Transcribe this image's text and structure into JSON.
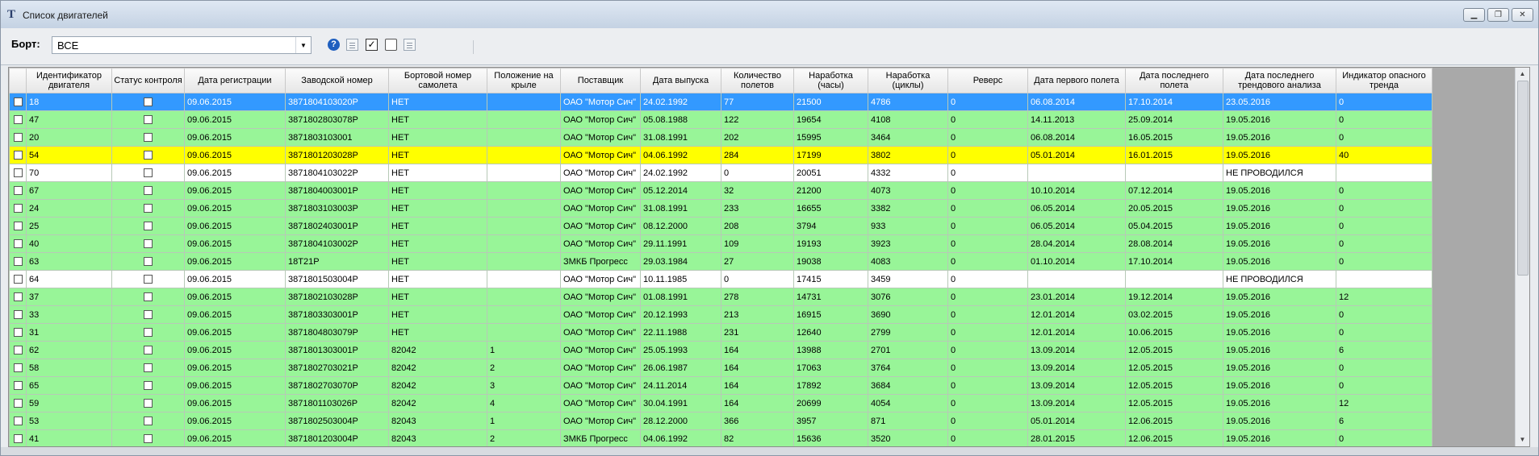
{
  "window": {
    "title": "Список двигателей",
    "buttons": [
      "minimize-icon",
      "restore-icon",
      "close-icon"
    ]
  },
  "toolbar": {
    "bort_label": "Борт:",
    "bort_value": "ВСЕ"
  },
  "table": {
    "columns": [
      "Идентификатор двигателя",
      "Статус контроля",
      "Дата регистрации",
      "Заводской номер",
      "Бортовой номер самолета",
      "Положение на крыле",
      "Поставщик",
      "Дата выпуска",
      "Количество полетов",
      "Наработка (часы)",
      "Наработка (циклы)",
      "Реверс",
      "Дата первого полета",
      "Дата последнего полета",
      "Дата последнего трендового анализа",
      "Индикатор опасного тренда"
    ],
    "rows": [
      {
        "style": "selected",
        "cells": [
          "18",
          "",
          "09.06.2015",
          "3871804103020P",
          "НЕТ",
          "",
          "ОАО \"Мотор Сич\"",
          "24.02.1992",
          "77",
          "21500",
          "4786",
          "0",
          "06.08.2014",
          "17.10.2014",
          "23.05.2016",
          "0"
        ]
      },
      {
        "style": "green",
        "cells": [
          "47",
          "",
          "09.06.2015",
          "3871802803078P",
          "НЕТ",
          "",
          "ОАО \"Мотор Сич\"",
          "05.08.1988",
          "122",
          "19654",
          "4108",
          "0",
          "14.11.2013",
          "25.09.2014",
          "19.05.2016",
          "0"
        ]
      },
      {
        "style": "green",
        "cells": [
          "20",
          "",
          "09.06.2015",
          "3871803103001",
          "НЕТ",
          "",
          "ОАО \"Мотор Сич\"",
          "31.08.1991",
          "202",
          "15995",
          "3464",
          "0",
          "06.08.2014",
          "16.05.2015",
          "19.05.2016",
          "0"
        ]
      },
      {
        "style": "yellow",
        "cells": [
          "54",
          "",
          "09.06.2015",
          "3871801203028P",
          "НЕТ",
          "",
          "ОАО \"Мотор Сич\"",
          "04.06.1992",
          "284",
          "17199",
          "3802",
          "0",
          "05.01.2014",
          "16.01.2015",
          "19.05.2016",
          "40"
        ]
      },
      {
        "style": "white",
        "cells": [
          "70",
          "",
          "09.06.2015",
          "3871804103022P",
          "НЕТ",
          "",
          "ОАО \"Мотор Сич\"",
          "24.02.1992",
          "0",
          "20051",
          "4332",
          "0",
          "",
          "",
          "НЕ ПРОВОДИЛСЯ",
          ""
        ]
      },
      {
        "style": "green",
        "cells": [
          "67",
          "",
          "09.06.2015",
          "3871804003001P",
          "НЕТ",
          "",
          "ОАО \"Мотор Сич\"",
          "05.12.2014",
          "32",
          "21200",
          "4073",
          "0",
          "10.10.2014",
          "07.12.2014",
          "19.05.2016",
          "0"
        ]
      },
      {
        "style": "green",
        "cells": [
          "24",
          "",
          "09.06.2015",
          "3871803103003P",
          "НЕТ",
          "",
          "ОАО \"Мотор Сич\"",
          "31.08.1991",
          "233",
          "16655",
          "3382",
          "0",
          "06.05.2014",
          "20.05.2015",
          "19.05.2016",
          "0"
        ]
      },
      {
        "style": "green",
        "cells": [
          "25",
          "",
          "09.06.2015",
          "3871802403001P",
          "НЕТ",
          "",
          "ОАО \"Мотор Сич\"",
          "08.12.2000",
          "208",
          "3794",
          "933",
          "0",
          "06.05.2014",
          "05.04.2015",
          "19.05.2016",
          "0"
        ]
      },
      {
        "style": "green",
        "cells": [
          "40",
          "",
          "09.06.2015",
          "3871804103002P",
          "НЕТ",
          "",
          "ОАО \"Мотор Сич\"",
          "29.11.1991",
          "109",
          "19193",
          "3923",
          "0",
          "28.04.2014",
          "28.08.2014",
          "19.05.2016",
          "0"
        ]
      },
      {
        "style": "green",
        "cells": [
          "63",
          "",
          "09.06.2015",
          "18Т21Р",
          "НЕТ",
          "",
          "ЗМКБ Прогресс",
          "29.03.1984",
          "27",
          "19038",
          "4083",
          "0",
          "01.10.2014",
          "17.10.2014",
          "19.05.2016",
          "0"
        ]
      },
      {
        "style": "white",
        "cells": [
          "64",
          "",
          "09.06.2015",
          "3871801503004P",
          "НЕТ",
          "",
          "ОАО \"Мотор Сич\"",
          "10.11.1985",
          "0",
          "17415",
          "3459",
          "0",
          "",
          "",
          "НЕ ПРОВОДИЛСЯ",
          ""
        ]
      },
      {
        "style": "green",
        "cells": [
          "37",
          "",
          "09.06.2015",
          "3871802103028P",
          "НЕТ",
          "",
          "ОАО \"Мотор Сич\"",
          "01.08.1991",
          "278",
          "14731",
          "3076",
          "0",
          "23.01.2014",
          "19.12.2014",
          "19.05.2016",
          "12"
        ]
      },
      {
        "style": "green",
        "cells": [
          "33",
          "",
          "09.06.2015",
          "3871803303001P",
          "НЕТ",
          "",
          "ОАО \"Мотор Сич\"",
          "20.12.1993",
          "213",
          "16915",
          "3690",
          "0",
          "12.01.2014",
          "03.02.2015",
          "19.05.2016",
          "0"
        ]
      },
      {
        "style": "green",
        "cells": [
          "31",
          "",
          "09.06.2015",
          "3871804803079P",
          "НЕТ",
          "",
          "ОАО \"Мотор Сич\"",
          "22.11.1988",
          "231",
          "12640",
          "2799",
          "0",
          "12.01.2014",
          "10.06.2015",
          "19.05.2016",
          "0"
        ]
      },
      {
        "style": "green",
        "cells": [
          "62",
          "",
          "09.06.2015",
          "3871801303001P",
          "82042",
          "1",
          "ОАО \"Мотор Сич\"",
          "25.05.1993",
          "164",
          "13988",
          "2701",
          "0",
          "13.09.2014",
          "12.05.2015",
          "19.05.2016",
          "6"
        ]
      },
      {
        "style": "green",
        "cells": [
          "58",
          "",
          "09.06.2015",
          "3871802703021P",
          "82042",
          "2",
          "ОАО \"Мотор Сич\"",
          "26.06.1987",
          "164",
          "17063",
          "3764",
          "0",
          "13.09.2014",
          "12.05.2015",
          "19.05.2016",
          "0"
        ]
      },
      {
        "style": "green",
        "cells": [
          "65",
          "",
          "09.06.2015",
          "3871802703070P",
          "82042",
          "3",
          "ОАО \"Мотор Сич\"",
          "24.11.2014",
          "164",
          "17892",
          "3684",
          "0",
          "13.09.2014",
          "12.05.2015",
          "19.05.2016",
          "0"
        ]
      },
      {
        "style": "green",
        "cells": [
          "59",
          "",
          "09.06.2015",
          "3871801103026P",
          "82042",
          "4",
          "ОАО \"Мотор Сич\"",
          "30.04.1991",
          "164",
          "20699",
          "4054",
          "0",
          "13.09.2014",
          "12.05.2015",
          "19.05.2016",
          "12"
        ]
      },
      {
        "style": "green",
        "cells": [
          "53",
          "",
          "09.06.2015",
          "3871802503004P",
          "82043",
          "1",
          "ОАО \"Мотор Сич\"",
          "28.12.2000",
          "366",
          "3957",
          "871",
          "0",
          "05.01.2014",
          "12.06.2015",
          "19.05.2016",
          "6"
        ]
      },
      {
        "style": "green",
        "cells": [
          "41",
          "",
          "09.06.2015",
          "3871801203004P",
          "82043",
          "2",
          "ЗМКБ Прогресс",
          "04.06.1992",
          "82",
          "15636",
          "3520",
          "0",
          "28.01.2015",
          "12.06.2015",
          "19.05.2016",
          "0"
        ]
      }
    ]
  }
}
